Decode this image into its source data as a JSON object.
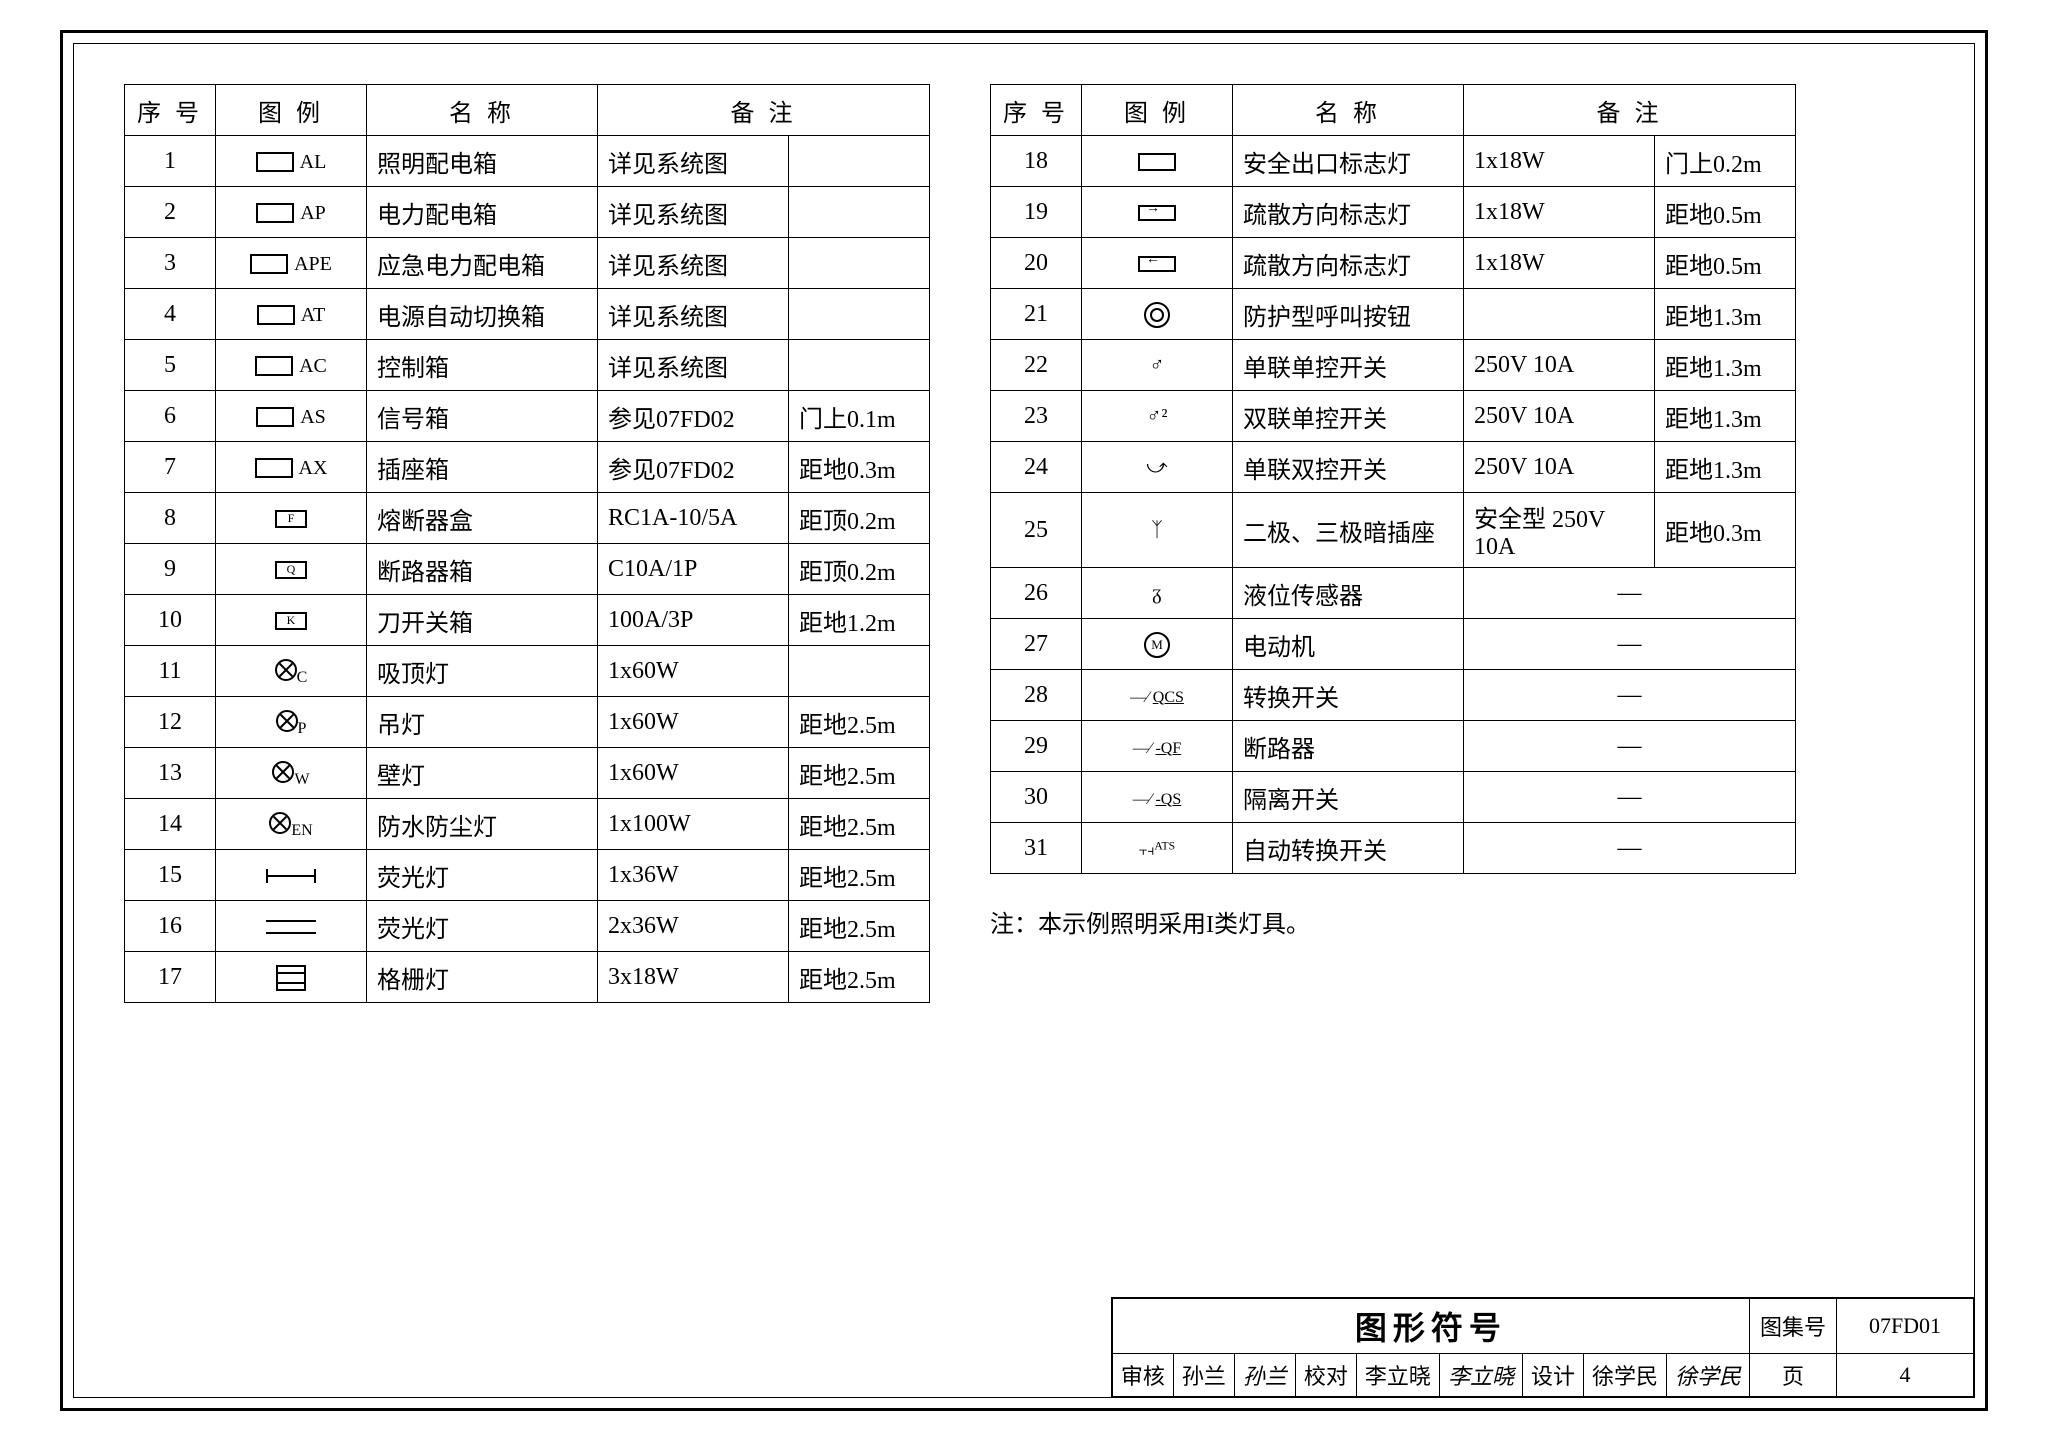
{
  "headers": {
    "seq": "序 号",
    "symbol": "图 例",
    "name": "名  称",
    "note": "备   注"
  },
  "table1": [
    {
      "n": "1",
      "symLabel": "AL",
      "name": "照明配电箱",
      "note1": "详见系统图",
      "note2": ""
    },
    {
      "n": "2",
      "symLabel": "AP",
      "name": "电力配电箱",
      "note1": "详见系统图",
      "note2": ""
    },
    {
      "n": "3",
      "symLabel": "APE",
      "name": "应急电力配电箱",
      "note1": "详见系统图",
      "note2": ""
    },
    {
      "n": "4",
      "symLabel": "AT",
      "name": "电源自动切换箱",
      "note1": "详见系统图",
      "note2": ""
    },
    {
      "n": "5",
      "symLabel": "AC",
      "name": "控制箱",
      "note1": "详见系统图",
      "note2": ""
    },
    {
      "n": "6",
      "symLabel": "AS",
      "name": "信号箱",
      "note1": "参见07FD02",
      "note2": "门上0.1m"
    },
    {
      "n": "7",
      "symLabel": "AX",
      "name": "插座箱",
      "note1": "参见07FD02",
      "note2": "距地0.3m"
    },
    {
      "n": "8",
      "symLabel": "F",
      "name": "熔断器盒",
      "note1": "RC1A-10/5A",
      "note2": "距顶0.2m"
    },
    {
      "n": "9",
      "symLabel": "Q",
      "name": "断路器箱",
      "note1": "C10A/1P",
      "note2": "距顶0.2m"
    },
    {
      "n": "10",
      "symLabel": "K",
      "name": "刀开关箱",
      "note1": "100A/3P",
      "note2": "距地1.2m"
    },
    {
      "n": "11",
      "sub": "C",
      "name": "吸顶灯",
      "note1": "1x60W",
      "note2": ""
    },
    {
      "n": "12",
      "sub": "P",
      "name": "吊灯",
      "note1": "1x60W",
      "note2": "距地2.5m"
    },
    {
      "n": "13",
      "sub": "W",
      "name": "壁灯",
      "note1": "1x60W",
      "note2": "距地2.5m"
    },
    {
      "n": "14",
      "sub": "EN",
      "name": "防水防尘灯",
      "note1": "1x100W",
      "note2": "距地2.5m"
    },
    {
      "n": "15",
      "name": "荧光灯",
      "note1": "1x36W",
      "note2": "距地2.5m"
    },
    {
      "n": "16",
      "name": "荧光灯",
      "note1": "2x36W",
      "note2": "距地2.5m"
    },
    {
      "n": "17",
      "name": "格栅灯",
      "note1": "3x18W",
      "note2": "距地2.5m"
    }
  ],
  "table2": [
    {
      "n": "18",
      "name": "安全出口标志灯",
      "note1": "1x18W",
      "note2": "门上0.2m"
    },
    {
      "n": "19",
      "name": "疏散方向标志灯",
      "note1": "1x18W",
      "note2": "距地0.5m"
    },
    {
      "n": "20",
      "name": "疏散方向标志灯",
      "note1": "1x18W",
      "note2": "距地0.5m"
    },
    {
      "n": "21",
      "name": "防护型呼叫按钮",
      "note1": "",
      "note2": "距地1.3m"
    },
    {
      "n": "22",
      "swSym": "♂",
      "name": "单联单控开关",
      "note1": "250V 10A",
      "note2": "距地1.3m"
    },
    {
      "n": "23",
      "swSym": "♂²",
      "name": "双联单控开关",
      "note1": "250V 10A",
      "note2": "距地1.3m"
    },
    {
      "n": "24",
      "swSym": "⤻",
      "name": "单联双控开关",
      "note1": "250V 10A",
      "note2": "距地1.3m"
    },
    {
      "n": "25",
      "swSym": "ᛉ",
      "name": "二极、三极暗插座",
      "note1": "安全型 250V 10A",
      "note2": "距地0.3m"
    },
    {
      "n": "26",
      "swSym": "ᵹ",
      "name": "液位传感器",
      "note1": "—",
      "note2": ""
    },
    {
      "n": "27",
      "name": "电动机",
      "note1": "—",
      "note2": ""
    },
    {
      "n": "28",
      "swLabel": "QCS",
      "name": "转换开关",
      "note1": "—",
      "note2": ""
    },
    {
      "n": "29",
      "swLabel": "-QF",
      "name": "断路器",
      "note1": "—",
      "note2": ""
    },
    {
      "n": "30",
      "swLabel": "-QS",
      "name": "隔离开关",
      "note1": "—",
      "note2": ""
    },
    {
      "n": "31",
      "swLabel": "ATS",
      "name": "自动转换开关",
      "note1": "—",
      "note2": ""
    }
  ],
  "footnote": "注：本示例照明采用I类灯具。",
  "titleBlock": {
    "title": "图形符号",
    "albumLabel": "图集号",
    "albumNo": "07FD01",
    "review": "审核",
    "reviewName": "孙兰",
    "proof": "校对",
    "proofName": "李立晓",
    "design": "设计",
    "designName": "徐学民",
    "pageLabel": "页",
    "pageNo": "4"
  }
}
